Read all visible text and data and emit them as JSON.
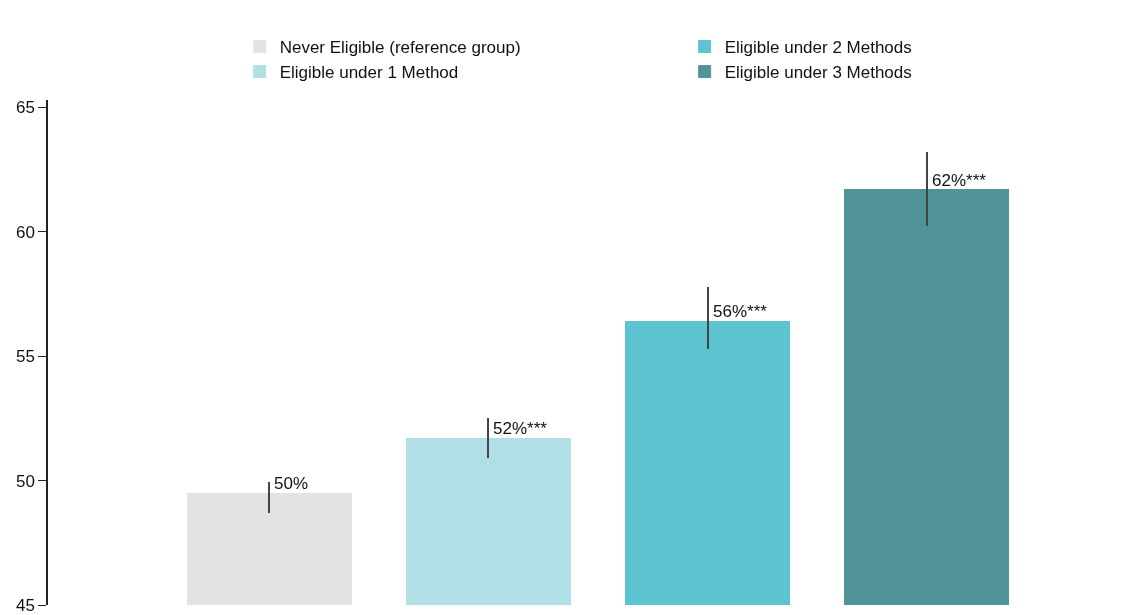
{
  "chart_data": {
    "type": "bar",
    "categories": [
      null,
      null,
      null,
      null
    ],
    "series": [
      {
        "name": "Never Eligible (reference group)",
        "color": "#e3e3e3",
        "values": [
          49.5,
          null,
          null,
          null
        ],
        "errors": [
          [
            48.7,
            49.95
          ],
          null,
          null,
          null
        ],
        "value_labels": [
          "50%",
          null,
          null,
          null
        ]
      },
      {
        "name": "Eligible under 1 Method",
        "color": "#b0e0e6",
        "values": [
          null,
          51.7,
          null,
          null
        ],
        "errors": [
          null,
          [
            50.9,
            52.5
          ],
          null,
          null
        ],
        "value_labels": [
          null,
          "52%***",
          null,
          null
        ]
      },
      {
        "name": "Eligible under 2 Methods",
        "color": "#5ec3d1",
        "values": [
          null,
          null,
          56.4,
          null
        ],
        "errors": [
          null,
          null,
          [
            55.3,
            57.8
          ],
          null
        ],
        "value_labels": [
          null,
          null,
          "56%***",
          null
        ]
      },
      {
        "name": "Eligible under 3 Methods",
        "color": "#509399",
        "values": [
          null,
          null,
          null,
          61.7
        ],
        "errors": [
          null,
          null,
          null,
          [
            60.25,
            63.2
          ]
        ],
        "value_labels": [
          null,
          null,
          null,
          "62%***"
        ]
      }
    ],
    "ylim": [
      45,
      65.3
    ],
    "yticks": [
      45,
      50,
      55,
      60,
      65
    ],
    "legend": "top",
    "tick_labels": "y",
    "stacked": true
  }
}
